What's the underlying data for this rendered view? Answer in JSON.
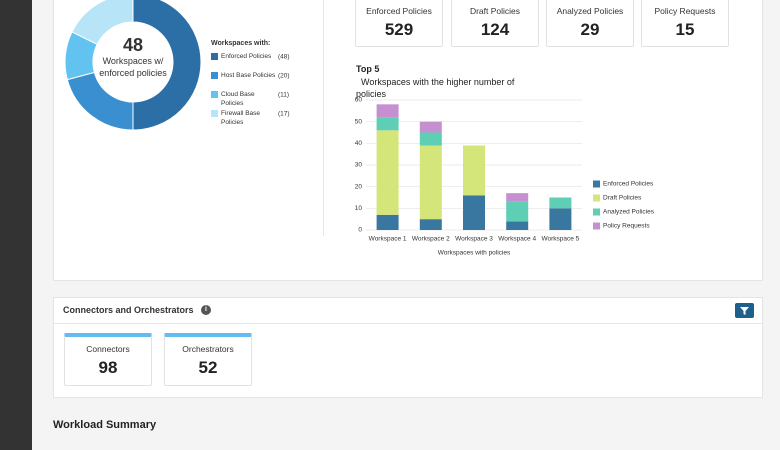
{
  "stats": [
    {
      "label": "Enforced Policies",
      "value": 529
    },
    {
      "label": "Draft Policies",
      "value": 124
    },
    {
      "label": "Analyzed Policies",
      "value": 29
    },
    {
      "label": "Policy Requests",
      "value": 15
    }
  ],
  "chart_data": [
    {
      "type": "pie",
      "center_value": 48,
      "center_label": "Workspaces w/ enforced policies",
      "legend_title": "Workspaces with:",
      "categories": [
        "Enforced Policies",
        "Host Base Policies",
        "Cloud Base Policies",
        "Firewall Base Policies"
      ],
      "values": [
        48,
        20,
        11,
        17
      ],
      "value_labels": [
        "(48)",
        "(20)",
        "(11)",
        "(17)"
      ],
      "colors": [
        "#2c6ea6",
        "#3a8fd0",
        "#62c3f0",
        "#b8e4f8"
      ]
    },
    {
      "type": "bar",
      "stacked": true,
      "title": "Top 5",
      "subtitle": "Workspaces with the higher number of policies",
      "xlabel": "Workspaces with policies",
      "categories": [
        "Workspace 1",
        "Workspace 2",
        "Workspace 3",
        "Workspace 4",
        "Workspace 5"
      ],
      "series": [
        {
          "name": "Enforced Policies",
          "color": "#3a77a0",
          "values": [
            7,
            5,
            16,
            4,
            10
          ]
        },
        {
          "name": "Draft Policies",
          "color": "#d4e57a",
          "values": [
            39,
            34,
            23,
            0,
            0
          ]
        },
        {
          "name": "Analyzed Policies",
          "color": "#5ecfb5",
          "values": [
            6,
            6,
            0,
            9,
            5
          ]
        },
        {
          "name": "Policy Requests",
          "color": "#c58fd0",
          "values": [
            6,
            5,
            0,
            4,
            0
          ]
        }
      ],
      "ylim": [
        0,
        60
      ],
      "yticks": [
        0,
        10,
        20,
        30,
        40,
        50,
        60
      ],
      "grid": true,
      "legend": "right"
    }
  ],
  "connectors": {
    "title": "Connectors and Orchestrators",
    "cards": [
      {
        "label": "Connectors",
        "value": 98
      },
      {
        "label": "Orchestrators",
        "value": 52
      }
    ]
  },
  "workload_summary": {
    "title": "Workload Summary"
  }
}
